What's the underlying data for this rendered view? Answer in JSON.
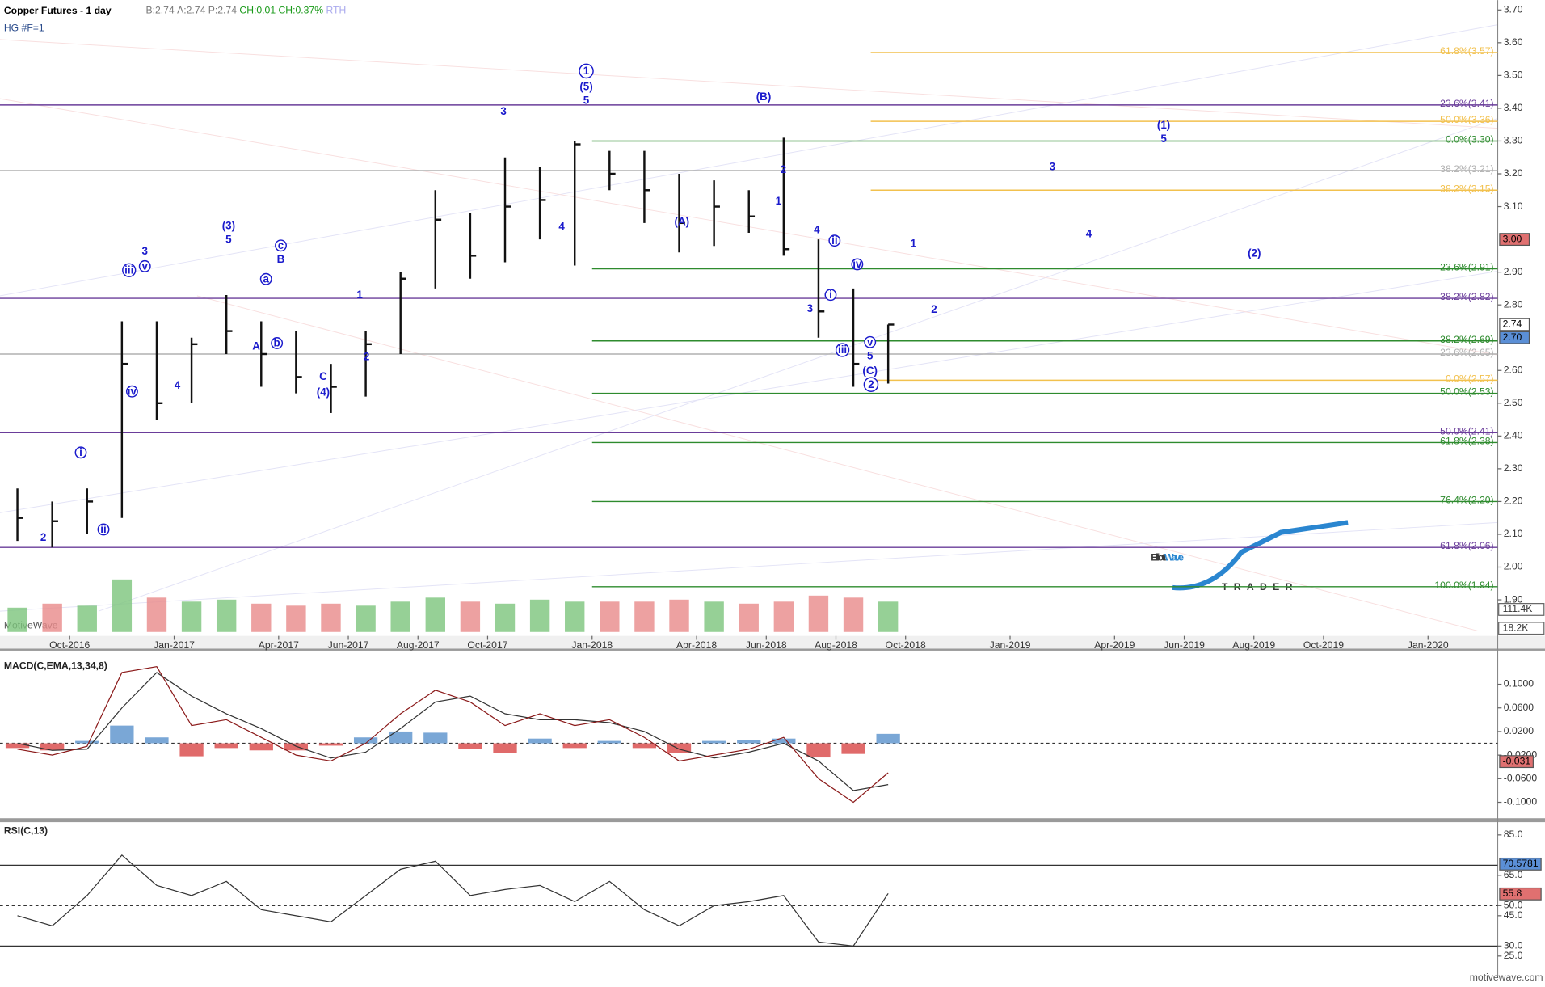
{
  "header": {
    "title": "Copper Futures - 1 day",
    "quote": [
      "B:2.74",
      "A:2.74",
      "P:2.74",
      "CH:0.01",
      "CH:0.37%",
      "RTH"
    ],
    "symbol": "HG #F=1",
    "watermark": "MotiveWave",
    "footer": "motivewave.com",
    "logo": {
      "main": [
        "Elliott",
        "Wave"
      ],
      "sub": "TRADER"
    }
  },
  "chart_data": [
    {
      "type": "ohlc",
      "color": "#111111",
      "x": [
        "2016-08",
        "2016-09",
        "2016-10",
        "2016-11",
        "2016-12",
        "2017-01",
        "2017-02",
        "2017-03",
        "2017-04",
        "2017-05",
        "2017-06",
        "2017-07",
        "2017-08",
        "2017-09",
        "2017-10",
        "2017-11",
        "2017-12",
        "2018-01",
        "2018-02",
        "2018-03",
        "2018-04",
        "2018-05",
        "2018-06",
        "2018-07",
        "2018-08",
        "2018-09"
      ],
      "high": [
        2.24,
        2.2,
        2.24,
        2.75,
        2.75,
        2.7,
        2.83,
        2.75,
        2.72,
        2.62,
        2.72,
        2.9,
        3.15,
        3.08,
        3.25,
        3.22,
        3.3,
        3.27,
        3.27,
        3.2,
        3.18,
        3.15,
        3.31,
        3.0,
        2.85,
        2.74
      ],
      "low": [
        2.08,
        2.06,
        2.1,
        2.15,
        2.45,
        2.5,
        2.65,
        2.55,
        2.53,
        2.47,
        2.52,
        2.65,
        2.85,
        2.88,
        2.93,
        3.0,
        2.92,
        3.15,
        3.05,
        2.96,
        2.98,
        3.02,
        2.95,
        2.7,
        2.55,
        2.56
      ],
      "close": [
        2.15,
        2.14,
        2.2,
        2.62,
        2.5,
        2.68,
        2.72,
        2.65,
        2.58,
        2.55,
        2.68,
        2.88,
        3.06,
        2.95,
        3.1,
        3.12,
        3.29,
        3.2,
        3.15,
        3.05,
        3.1,
        3.07,
        2.97,
        2.78,
        2.62,
        2.74
      ],
      "xlim": [
        "2016-08",
        "2020-03"
      ],
      "xticks": [
        {
          "value": "2016-10",
          "label": "Oct-2016"
        },
        {
          "value": "2017-01",
          "label": "Jan-2017"
        },
        {
          "value": "2017-04",
          "label": "Apr-2017"
        },
        {
          "value": "2017-06",
          "label": "Jun-2017"
        },
        {
          "value": "2017-08",
          "label": "Aug-2017"
        },
        {
          "value": "2017-10",
          "label": "Oct-2017"
        },
        {
          "value": "2018-01",
          "label": "Jan-2018"
        },
        {
          "value": "2018-04",
          "label": "Apr-2018"
        },
        {
          "value": "2018-06",
          "label": "Jun-2018"
        },
        {
          "value": "2018-08",
          "label": "Aug-2018"
        },
        {
          "value": "2018-10",
          "label": "Oct-2018"
        },
        {
          "value": "2019-01",
          "label": "Jan-2019"
        },
        {
          "value": "2019-04",
          "label": "Apr-2019"
        },
        {
          "value": "2019-06",
          "label": "Jun-2019"
        },
        {
          "value": "2019-08",
          "label": "Aug-2019"
        },
        {
          "value": "2019-10",
          "label": "Oct-2019"
        },
        {
          "value": "2020-01",
          "label": "Jan-2020"
        }
      ],
      "ylim": [
        1.79,
        3.73
      ],
      "yticks": [
        {
          "value": 3.7,
          "label": "3.70"
        },
        {
          "value": 3.6,
          "label": "3.60"
        },
        {
          "value": 3.5,
          "label": "3.50"
        },
        {
          "value": 3.4,
          "label": "3.40"
        },
        {
          "value": 3.3,
          "label": "3.30"
        },
        {
          "value": 3.2,
          "label": "3.20"
        },
        {
          "value": 3.1,
          "label": "3.10"
        },
        {
          "value": 2.9,
          "label": "2.90"
        },
        {
          "value": 2.8,
          "label": "2.80"
        },
        {
          "value": 2.6,
          "label": "2.60"
        },
        {
          "value": 2.5,
          "label": "2.50"
        },
        {
          "value": 2.4,
          "label": "2.40"
        },
        {
          "value": 2.3,
          "label": "2.30"
        },
        {
          "value": 2.2,
          "label": "2.20"
        },
        {
          "value": 2.1,
          "label": "2.10"
        },
        {
          "value": 2.0,
          "label": "2.00"
        },
        {
          "value": 1.9,
          "label": "1.90"
        }
      ],
      "price_tags": [
        {
          "value": 3.0,
          "label": "3.00",
          "color": "#e07070"
        },
        {
          "value": 2.74,
          "label": "2.74",
          "color": "#ffffff"
        },
        {
          "value": 2.7,
          "label": "2.70",
          "color": "#5b8fd6"
        }
      ],
      "fib_levels": [
        {
          "label": "61.8%(3.57)",
          "value": 3.57,
          "color": "#f2c14e",
          "start": "2018-09"
        },
        {
          "label": "23.6%(3.41)",
          "value": 3.41,
          "color": "#6a3d9a"
        },
        {
          "label": "50.0%(3.36)",
          "value": 3.36,
          "color": "#f2c14e",
          "start": "2018-09"
        },
        {
          "label": "0.0%(3.30)",
          "value": 3.3,
          "color": "#2e8b2e",
          "start": "2018-01"
        },
        {
          "label": "38.2%(3.21)",
          "value": 3.21,
          "color": "#b0b0b0"
        },
        {
          "label": "38.2%(3.15)",
          "value": 3.15,
          "color": "#f2c14e",
          "start": "2018-09"
        },
        {
          "label": "23.6%(2.91)",
          "value": 2.91,
          "color": "#2e8b2e",
          "start": "2018-01"
        },
        {
          "label": "38.2%(2.82)",
          "value": 2.82,
          "color": "#6a3d9a"
        },
        {
          "label": "38.2%(2.69)",
          "value": 2.69,
          "color": "#2e8b2e",
          "start": "2018-01"
        },
        {
          "label": "23.6%(2.65)",
          "value": 2.65,
          "color": "#b0b0b0"
        },
        {
          "label": "0.0%(2.57)",
          "value": 2.57,
          "color": "#f2c14e",
          "start": "2018-09"
        },
        {
          "label": "50.0%(2.53)",
          "value": 2.53,
          "color": "#2e8b2e",
          "start": "2018-01"
        },
        {
          "label": "50.0%(2.41)",
          "value": 2.41,
          "color": "#6a3d9a"
        },
        {
          "label": "61.8%(2.38)",
          "value": 2.38,
          "color": "#2e8b2e",
          "start": "2018-01"
        },
        {
          "label": "76.4%(2.20)",
          "value": 2.2,
          "color": "#2e8b2e",
          "start": "2018-01"
        },
        {
          "label": "61.8%(2.06)",
          "value": 2.06,
          "color": "#6a3d9a"
        },
        {
          "label": "100.0%(1.94)",
          "value": 1.94,
          "color": "#2e8b2e",
          "start": "2018-01"
        }
      ],
      "annotations": [
        {
          "text": "2"
        },
        {
          "text": "ii",
          "circled": true
        },
        {
          "text": "i",
          "circled": true
        },
        {
          "text": "iii",
          "circled": true
        },
        {
          "text": "iv",
          "circled": true
        },
        {
          "text": "v",
          "circled": true
        },
        {
          "text": "3"
        },
        {
          "text": "4"
        },
        {
          "text": "(3)"
        },
        {
          "text": "5"
        },
        {
          "text": "a",
          "circled": true
        },
        {
          "text": "A"
        },
        {
          "text": "b",
          "circled": true
        },
        {
          "text": "B"
        },
        {
          "text": "c",
          "circled": true
        },
        {
          "text": "C"
        },
        {
          "text": "(4)"
        },
        {
          "text": "1"
        },
        {
          "text": "2"
        },
        {
          "text": "3"
        },
        {
          "text": "4"
        },
        {
          "text": "1",
          "circled": true
        },
        {
          "text": "(5)"
        },
        {
          "text": "5"
        },
        {
          "text": "(A)"
        },
        {
          "text": "(B)"
        },
        {
          "text": "2"
        },
        {
          "text": "1"
        },
        {
          "text": "4"
        },
        {
          "text": "ii",
          "circled": true
        },
        {
          "text": "3"
        },
        {
          "text": "i",
          "circled": true
        },
        {
          "text": "iv",
          "circled": true
        },
        {
          "text": "iii",
          "circled": true
        },
        {
          "text": "v",
          "circled": true
        },
        {
          "text": "5"
        },
        {
          "text": "(C)"
        },
        {
          "text": "2",
          "circled": true
        },
        {
          "text": "1"
        },
        {
          "text": "2"
        },
        {
          "text": "3"
        },
        {
          "text": "4"
        },
        {
          "text": "(1)"
        },
        {
          "text": "5"
        },
        {
          "text": "(2)"
        }
      ],
      "volume": {
        "values": [
          120000,
          140000,
          130000,
          260000,
          170000,
          150000,
          160000,
          140000,
          130000,
          140000,
          130000,
          150000,
          170000,
          150000,
          140000,
          160000,
          150000,
          150000,
          150000,
          160000,
          150000,
          140000,
          150000,
          180000,
          170000,
          150000
        ],
        "ylim": [
          0,
          420000
        ],
        "yticks": [
          {
            "value": 111400,
            "label": "111.4K"
          },
          {
            "value": 18200,
            "label": "18.2K"
          }
        ]
      }
    },
    {
      "type": "macd",
      "title": "MACD(C,EMA,13,34,8)",
      "x": [
        "2016-08",
        "2016-09",
        "2016-10",
        "2016-11",
        "2016-12",
        "2017-01",
        "2017-02",
        "2017-03",
        "2017-04",
        "2017-05",
        "2017-06",
        "2017-07",
        "2017-08",
        "2017-09",
        "2017-10",
        "2017-11",
        "2017-12",
        "2018-01",
        "2018-02",
        "2018-03",
        "2018-04",
        "2018-05",
        "2018-06",
        "2018-07",
        "2018-08",
        "2018-09"
      ],
      "macd": [
        -0.01,
        -0.02,
        -0.005,
        0.12,
        0.13,
        0.03,
        0.04,
        0.01,
        -0.02,
        -0.03,
        0.0,
        0.05,
        0.09,
        0.07,
        0.03,
        0.05,
        0.03,
        0.04,
        0.01,
        -0.03,
        -0.02,
        -0.01,
        0.01,
        -0.06,
        -0.1,
        -0.05
      ],
      "signal": [
        0.0,
        -0.012,
        -0.01,
        0.06,
        0.12,
        0.08,
        0.05,
        0.025,
        -0.005,
        -0.025,
        -0.015,
        0.025,
        0.07,
        0.08,
        0.05,
        0.04,
        0.04,
        0.035,
        0.02,
        -0.01,
        -0.025,
        -0.015,
        0.0,
        -0.03,
        -0.08,
        -0.07
      ],
      "histogram": [
        -0.008,
        -0.012,
        0.004,
        0.03,
        0.01,
        -0.022,
        -0.008,
        -0.012,
        -0.012,
        -0.004,
        0.01,
        0.02,
        0.018,
        -0.01,
        -0.016,
        0.008,
        -0.008,
        0.004,
        -0.008,
        -0.016,
        0.004,
        0.006,
        0.008,
        -0.024,
        -0.018,
        0.016
      ],
      "colors": {
        "macd": "#8b1a1a",
        "signal": "#333333",
        "positive": "#7aa7d6",
        "negative": "#e06a6a"
      },
      "ylim": [
        -0.127,
        0.157
      ],
      "yticks": [
        {
          "value": 0.1,
          "label": "0.1000"
        },
        {
          "value": 0.06,
          "label": "0.0600"
        },
        {
          "value": 0.02,
          "label": "0.0200"
        },
        {
          "value": -0.02,
          "label": "-0.0200"
        },
        {
          "value": -0.06,
          "label": "-0.0600"
        },
        {
          "value": -0.1,
          "label": "-0.1000"
        }
      ],
      "tag": {
        "value": -0.031,
        "label": "-0.031",
        "color": "#e07070"
      }
    },
    {
      "type": "rsi",
      "title": "RSI(C,13)",
      "x": [
        "2016-08",
        "2016-09",
        "2016-10",
        "2016-11",
        "2016-12",
        "2017-01",
        "2017-02",
        "2017-03",
        "2017-04",
        "2017-05",
        "2017-06",
        "2017-07",
        "2017-08",
        "2017-09",
        "2017-10",
        "2017-11",
        "2017-12",
        "2018-01",
        "2018-02",
        "2018-03",
        "2018-04",
        "2018-05",
        "2018-06",
        "2018-07",
        "2018-08",
        "2018-09"
      ],
      "values": [
        45,
        40,
        55,
        75,
        60,
        55,
        62,
        48,
        45,
        42,
        55,
        68,
        72,
        55,
        58,
        60,
        52,
        62,
        48,
        40,
        50,
        52,
        55,
        32,
        30,
        56
      ],
      "color": "#333333",
      "ylim": [
        15.2,
        91.3
      ],
      "yticks": [
        {
          "value": 85,
          "label": "85.0"
        },
        {
          "value": 65,
          "label": "65.0"
        },
        {
          "value": 50,
          "label": "50.0"
        },
        {
          "value": 45,
          "label": "45.0"
        },
        {
          "value": 30,
          "label": "30.0"
        },
        {
          "value": 25,
          "label": "25.0"
        }
      ],
      "levels": [
        70,
        50,
        30
      ],
      "tags": [
        {
          "value": 70.5781,
          "label": "70.5781",
          "color": "#5b8fd6"
        },
        {
          "value": 55.8,
          "label": "55.8",
          "color": "#e07070"
        }
      ]
    }
  ]
}
